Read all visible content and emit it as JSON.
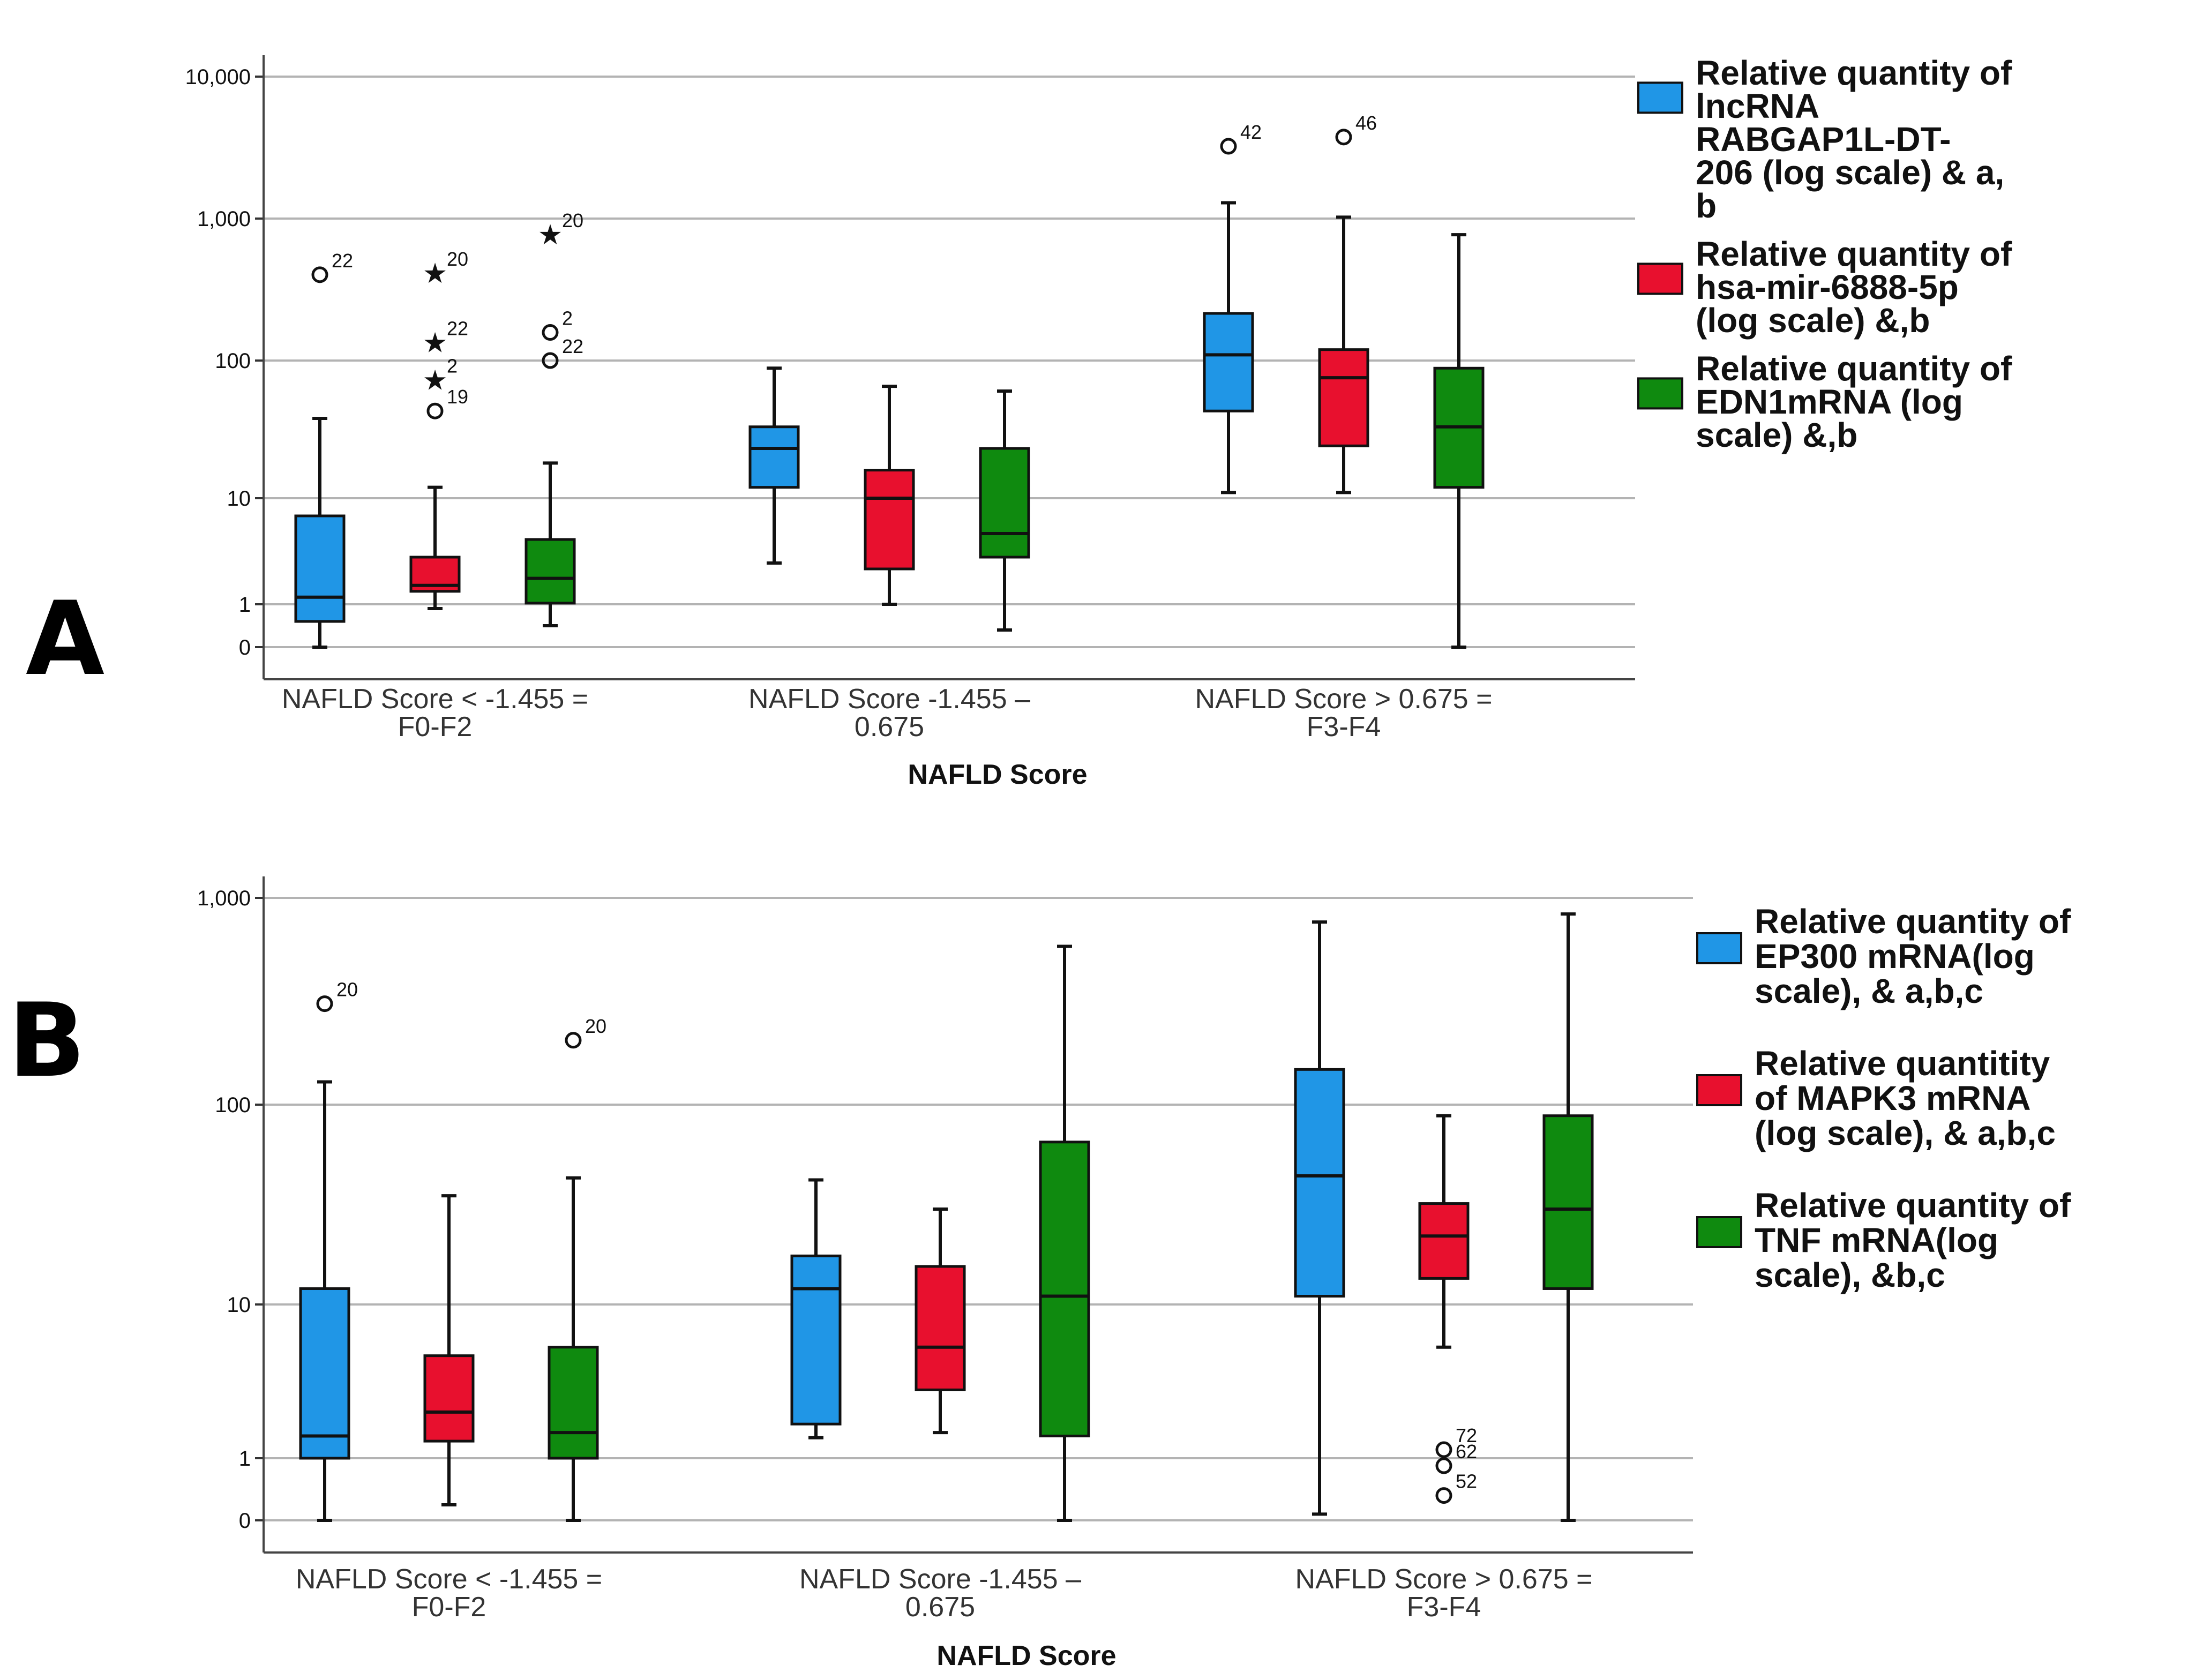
{
  "chart_data": [
    {
      "type": "box",
      "panel_label": "A",
      "xlabel": "NAFLD Score",
      "ylabel": "",
      "y_scale": "log",
      "y_ticks": [
        {
          "label": "10,000",
          "value": 10000
        },
        {
          "label": "1,000",
          "value": 1000
        },
        {
          "label": "100",
          "value": 100
        },
        {
          "label": "10",
          "value": 10
        },
        {
          "label": "1",
          "value": 1
        },
        {
          "label": "0",
          "value": 0
        }
      ],
      "grid": true,
      "legend_position": "right",
      "categories": [
        "NAFLD Score < -1.455 = F0-F2",
        "NAFLD Score -1.455 – 0.675",
        "NAFLD Score > 0.675 = F3-F4"
      ],
      "series": [
        {
          "name": "Relative quantity of lncRNA RABGAP1L-DT-206 (log scale) & a, b",
          "color": "#2096e6",
          "boxes": [
            {
              "whisker_low": 0,
              "q1": 0.6,
              "median": 1.6,
              "q3": 8.5,
              "whisker_high": 38,
              "outliers": [
                {
                  "value": 420,
                  "marker": "circle",
                  "label": "22"
                }
              ]
            },
            {
              "whisker_low": 4.5,
              "q1": 12,
              "median": 23,
              "q3": 33,
              "whisker_high": 88,
              "outliers": []
            },
            {
              "whisker_low": 11,
              "q1": 43,
              "median": 110,
              "q3": 220,
              "whisker_high": 1400,
              "outliers": [
                {
                  "value": 3600,
                  "marker": "circle",
                  "label": "42"
                }
              ]
            }
          ]
        },
        {
          "name": "Relative quantity of hsa-mir-6888-5p (log scale) &,b",
          "color": "#e8102e",
          "boxes": [
            {
              "whisker_low": 0.9,
              "q1": 2.1,
              "median": 2.6,
              "q3": 5,
              "whisker_high": 12,
              "outliers": [
                {
                  "value": 430,
                  "marker": "star",
                  "label": "20"
                },
                {
                  "value": 135,
                  "marker": "star",
                  "label": "22"
                },
                {
                  "value": 72,
                  "marker": "star",
                  "label": "2"
                },
                {
                  "value": 43,
                  "marker": "circle",
                  "label": "19"
                }
              ]
            },
            {
              "whisker_low": 1,
              "q1": 4,
              "median": 10,
              "q3": 16,
              "whisker_high": 65,
              "outliers": []
            },
            {
              "whisker_low": 11,
              "q1": 24,
              "median": 75,
              "q3": 120,
              "whisker_high": 1100,
              "outliers": [
                {
                  "value": 4200,
                  "marker": "circle",
                  "label": "46"
                }
              ]
            }
          ]
        },
        {
          "name": "Relative quantity of EDN1mRNA (log scale) &,b",
          "color": "#0f8a0f",
          "boxes": [
            {
              "whisker_low": 0.5,
              "q1": 1.1,
              "median": 3.2,
              "q3": 6.5,
              "whisker_high": 18,
              "outliers": [
                {
                  "value": 820,
                  "marker": "star",
                  "label": "20"
                },
                {
                  "value": 160,
                  "marker": "circle",
                  "label": "2"
                },
                {
                  "value": 100,
                  "marker": "circle",
                  "label": "22"
                }
              ]
            },
            {
              "whisker_low": 0.4,
              "q1": 5,
              "median": 7,
              "q3": 23,
              "whisker_high": 60,
              "outliers": []
            },
            {
              "whisker_low": 0,
              "q1": 12,
              "median": 33,
              "q3": 88,
              "whisker_high": 820,
              "outliers": []
            }
          ]
        }
      ]
    },
    {
      "type": "box",
      "panel_label": "B",
      "xlabel": "NAFLD Score",
      "ylabel": "",
      "y_scale": "log",
      "y_ticks": [
        {
          "label": "1,000",
          "value": 1000
        },
        {
          "label": "100",
          "value": 100
        },
        {
          "label": "10",
          "value": 10
        },
        {
          "label": "1",
          "value": 1
        },
        {
          "label": "0",
          "value": 0
        }
      ],
      "grid": true,
      "legend_position": "right",
      "categories": [
        "NAFLD Score < -1.455 = F0-F2",
        "NAFLD Score -1.455 – 0.675",
        "NAFLD Score > 0.675 = F3-F4"
      ],
      "series": [
        {
          "name": "Relative quantity of EP300 mRNA(log scale), & a,b,c",
          "color": "#2096e6",
          "boxes": [
            {
              "whisker_low": 0,
              "q1": 1,
              "median": 2.3,
              "q3": 12,
              "whisker_high": 130,
              "outliers": [
                {
                  "value": 320,
                  "marker": "circle",
                  "label": "20"
                }
              ]
            },
            {
              "whisker_low": 2.2,
              "q1": 3,
              "median": 12,
              "q3": 17.5,
              "whisker_high": 42,
              "outliers": []
            },
            {
              "whisker_low": 0.1,
              "q1": 11,
              "median": 44,
              "q3": 150,
              "whisker_high": 820,
              "outliers": []
            }
          ]
        },
        {
          "name": "Relative quantitity of MAPK3 mRNA (log scale), & a,b,c",
          "color": "#e8102e",
          "boxes": [
            {
              "whisker_low": 0.25,
              "q1": 2,
              "median": 3.7,
              "q3": 7,
              "whisker_high": 35,
              "outliers": []
            },
            {
              "whisker_low": 2.5,
              "q1": 5,
              "median": 7.5,
              "q3": 15.5,
              "whisker_high": 30,
              "outliers": []
            },
            {
              "whisker_low": 7.5,
              "q1": 13.5,
              "median": 22,
              "q3": 32,
              "whisker_high": 88,
              "outliers": [
                {
                  "value": 1.5,
                  "marker": "circle",
                  "label": "72"
                },
                {
                  "value": 1.5,
                  "marker": "circle",
                  "label": "62"
                },
                {
                  "value": 0.4,
                  "marker": "circle",
                  "label": "52"
                }
              ]
            }
          ]
        },
        {
          "name": "Relative quantity of TNF mRNA(log scale), &b,c",
          "color": "#0f8a0f",
          "boxes": [
            {
              "whisker_low": 0,
              "q1": 1,
              "median": 2.5,
              "q3": 7.5,
              "whisker_high": 43,
              "outliers": [
                {
                  "value": 210,
                  "marker": "circle",
                  "label": "20"
                }
              ]
            },
            {
              "whisker_low": 0,
              "q1": 2.3,
              "median": 11,
              "q3": 65,
              "whisker_high": 620,
              "outliers": []
            },
            {
              "whisker_low": 0,
              "q1": 12,
              "median": 30,
              "q3": 88,
              "whisker_high": 900,
              "outliers": []
            }
          ]
        }
      ]
    }
  ],
  "legends": [
    [
      [
        "Relative quantity of",
        "lncRNA",
        "RABGAP1L-DT-",
        "206 (log scale) & a,",
        "b"
      ],
      [
        "Relative quantity of",
        "hsa-mir-6888-5p",
        "(log scale) &,b"
      ],
      [
        "Relative quantity of",
        "EDN1mRNA (log",
        "scale) &,b"
      ]
    ],
    [
      [
        "Relative quantity of",
        "EP300 mRNA(log",
        "scale), & a,b,c"
      ],
      [
        "Relative quantitity",
        "of MAPK3 mRNA",
        "(log scale), & a,b,c"
      ],
      [
        "Relative quantity of",
        "TNF mRNA(log",
        "scale), &b,c"
      ]
    ]
  ],
  "category_lines": [
    [
      "NAFLD Score < -1.455 =",
      "F0-F2"
    ],
    [
      "NAFLD Score -1.455 –",
      "0.675"
    ],
    [
      "NAFLD Score > 0.675 =",
      "F3-F4"
    ]
  ]
}
